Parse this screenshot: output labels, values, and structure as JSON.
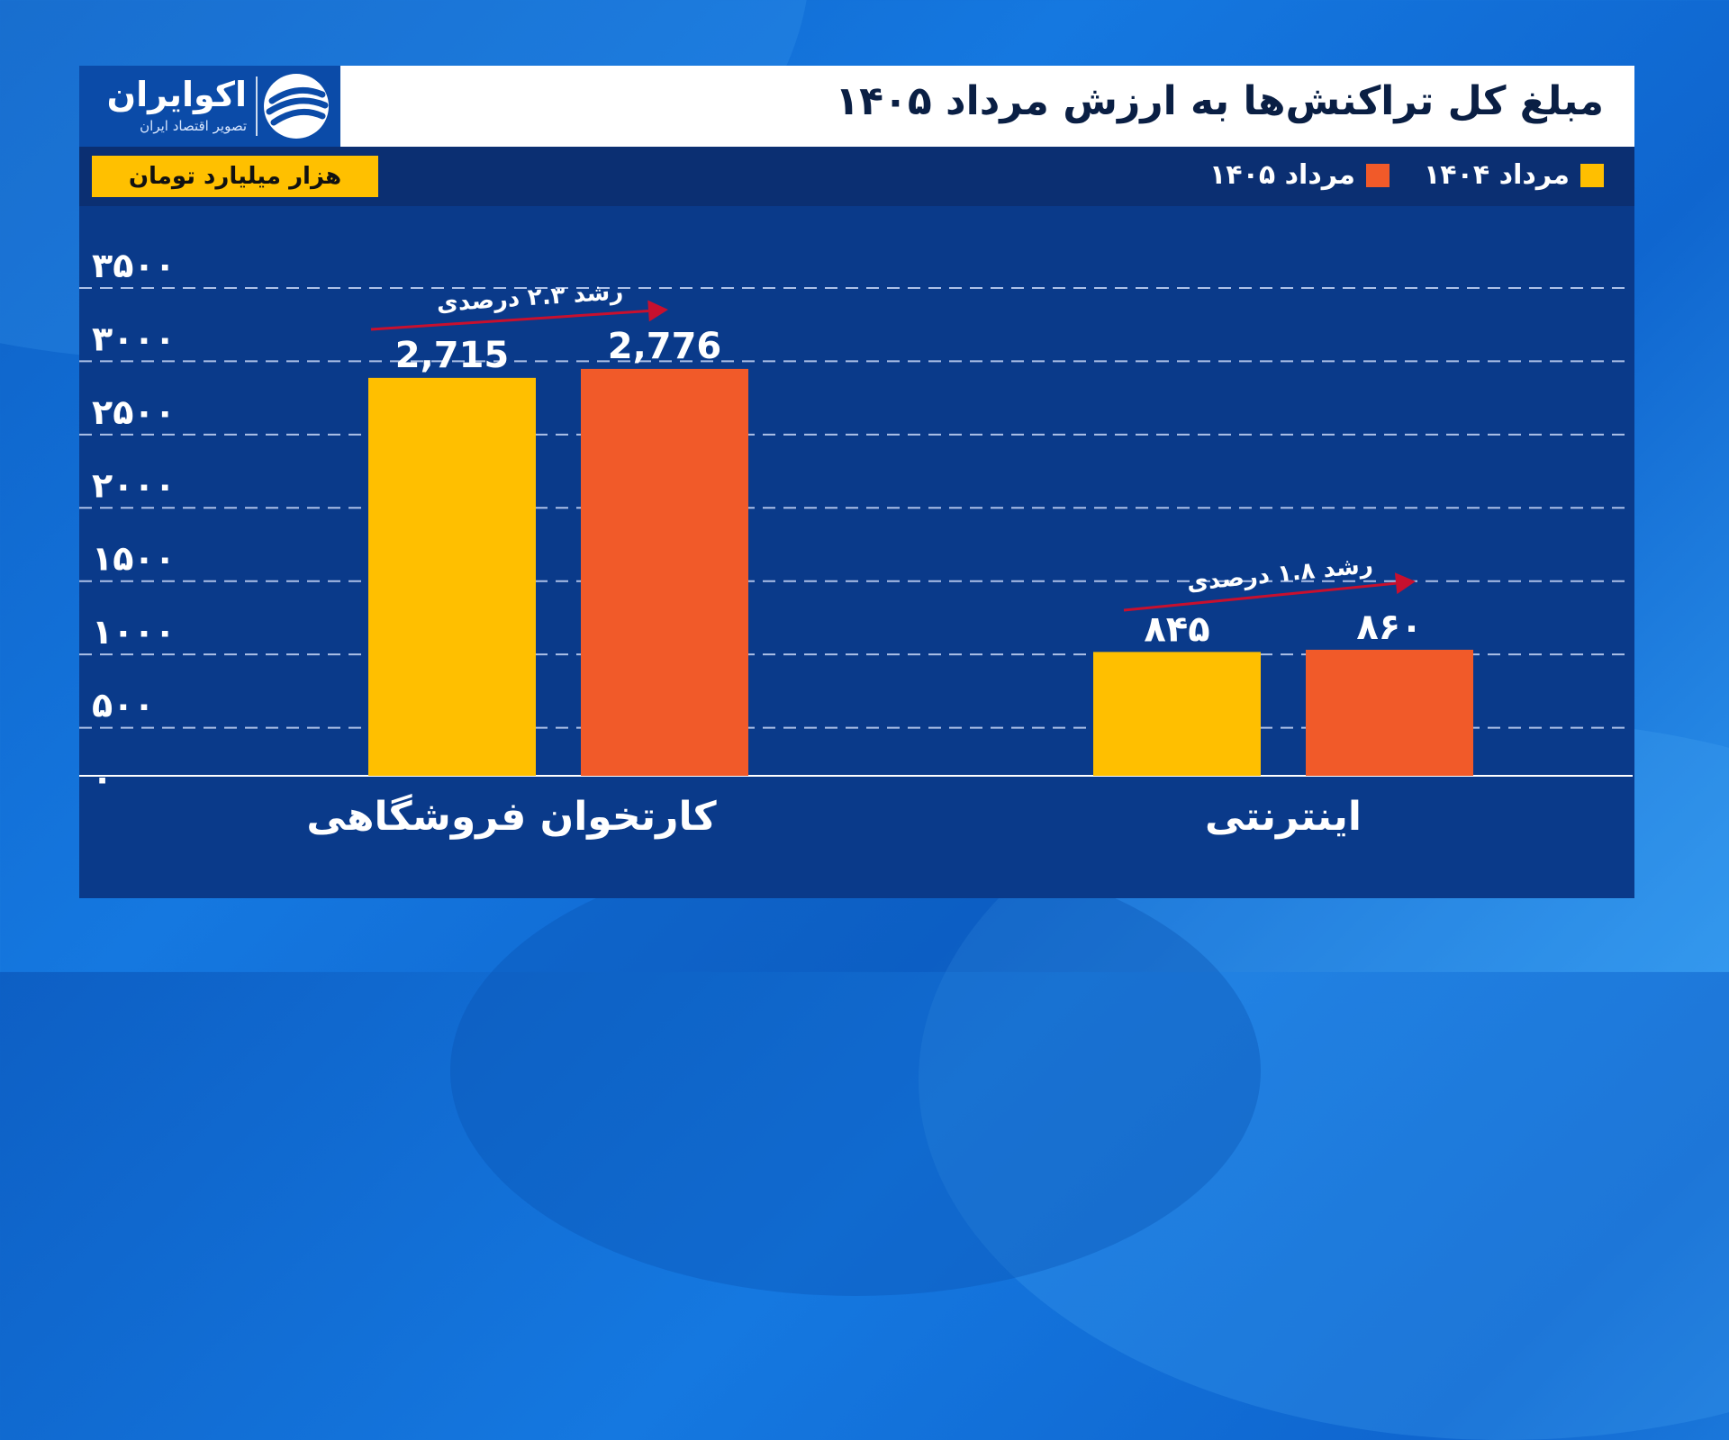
{
  "title": "مبلغ کل تراکنش‌ها به ارزش مرداد ۱۴۰۵",
  "logo": {
    "name": "اکوایران",
    "tagline": "تصویر اقتصاد ایران"
  },
  "unit_label": "هزار میلیارد تومان",
  "colors": {
    "series_1404": "#ffbf00",
    "series_1405": "#f15a29",
    "accent_arrow": "#c8102e"
  },
  "chart_data": {
    "type": "bar",
    "categories": [
      "کارتخوان فروشگاهی",
      "اینترنتی"
    ],
    "series": [
      {
        "name": "مرداد ۱۴۰۴",
        "values": [
          2715,
          845
        ],
        "labels": [
          "2,715",
          "۸۴۵"
        ]
      },
      {
        "name": "مرداد ۱۴۰۵",
        "values": [
          2776,
          860
        ],
        "labels": [
          "2,776",
          "۸۶۰"
        ]
      }
    ],
    "yticks": [
      0,
      500,
      1000,
      1500,
      2000,
      2500,
      3000,
      3500
    ],
    "ytick_labels": [
      "۰",
      "۵۰۰",
      "۱۰۰۰",
      "۱۵۰۰",
      "۲۰۰۰",
      "۲۵۰۰",
      "۳۰۰۰",
      "۳۵۰۰"
    ],
    "ylim": [
      0,
      3500
    ],
    "grid": true,
    "legend_position": "top-right",
    "annotations": [
      "رشد ۲.۳ درصدی",
      "رشد ۱.۸ درصدی"
    ]
  }
}
